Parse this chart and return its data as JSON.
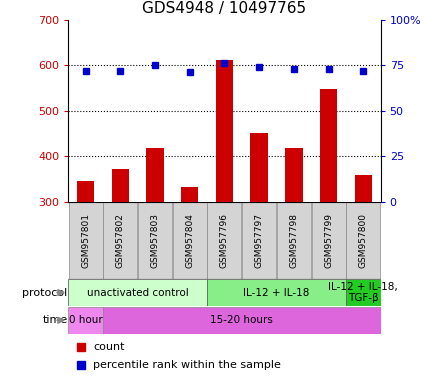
{
  "title": "GDS4948 / 10497765",
  "samples": [
    "GSM957801",
    "GSM957802",
    "GSM957803",
    "GSM957804",
    "GSM957796",
    "GSM957797",
    "GSM957798",
    "GSM957799",
    "GSM957800"
  ],
  "counts": [
    347,
    372,
    418,
    333,
    612,
    452,
    418,
    548,
    360
  ],
  "percentile_ranks": [
    72,
    72,
    75,
    71,
    76,
    74,
    73,
    73,
    72
  ],
  "ylim_left": [
    300,
    700
  ],
  "ylim_right": [
    0,
    100
  ],
  "yticks_left": [
    300,
    400,
    500,
    600,
    700
  ],
  "yticks_right": [
    0,
    25,
    50,
    75,
    100
  ],
  "bar_color": "#cc0000",
  "dot_color": "#0000cc",
  "bar_width": 0.5,
  "protocol_groups": [
    {
      "label": "unactivated control",
      "start": 0,
      "end": 3,
      "color": "#ccffcc"
    },
    {
      "label": "IL-12 + IL-18",
      "start": 4,
      "end": 7,
      "color": "#88ee88"
    },
    {
      "label": "IL-12 + IL-18,\nTGF-β",
      "start": 8,
      "end": 8,
      "color": "#22cc22"
    }
  ],
  "time_groups": [
    {
      "label": "0 hour",
      "start": 0,
      "end": 0,
      "color": "#ee88ee"
    },
    {
      "label": "15-20 hours",
      "start": 1,
      "end": 8,
      "color": "#dd66dd"
    }
  ],
  "legend_count_label": "count",
  "legend_pct_label": "percentile rank within the sample",
  "bar_color_label": "#cc0000",
  "dot_color_label": "#0000cc",
  "title_fontsize": 11,
  "tick_fontsize": 8,
  "sample_fontsize": 6.5,
  "row_fontsize": 7.5,
  "legend_fontsize": 8,
  "arrow_color": "#888888"
}
